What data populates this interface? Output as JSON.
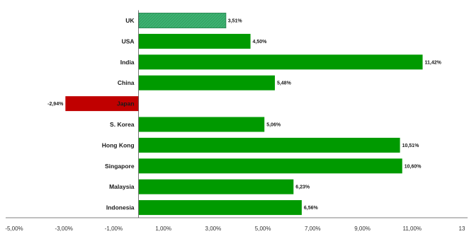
{
  "chart_data": {
    "type": "bar",
    "orientation": "horizontal",
    "categories": [
      "UK",
      "USA",
      "India",
      "China",
      "Japan",
      "S. Korea",
      "Hong Kong",
      "Singapore",
      "Malaysia",
      "Indonesia"
    ],
    "values": [
      3.51,
      4.5,
      11.42,
      5.48,
      -2.94,
      5.06,
      10.51,
      10.6,
      6.23,
      6.56
    ],
    "value_labels": [
      "3,51%",
      "4,50%",
      "11,42%",
      "5,48%",
      "-2,94%",
      "5,06%",
      "10,51%",
      "10,60%",
      "6,23%",
      "6,56%"
    ],
    "xlim": [
      -5,
      13
    ],
    "x_ticks": [
      -5,
      -3,
      -1,
      1,
      3,
      5,
      7,
      9,
      11,
      13
    ],
    "x_tick_labels": [
      "-5,00%",
      "-3,00%",
      "-1,00%",
      "1,00%",
      "3,00%",
      "5,00%",
      "7,00%",
      "9,00%",
      "11,00%",
      "13"
    ],
    "highlighted_category": "UK",
    "colors": {
      "positive": "#009a00",
      "negative": "#c00000",
      "highlight": "#3cb371",
      "highlight_border": "#2e8b57",
      "axis": "#555555"
    },
    "grid": false,
    "legend": "none",
    "title": "",
    "xlabel": "",
    "ylabel": ""
  }
}
